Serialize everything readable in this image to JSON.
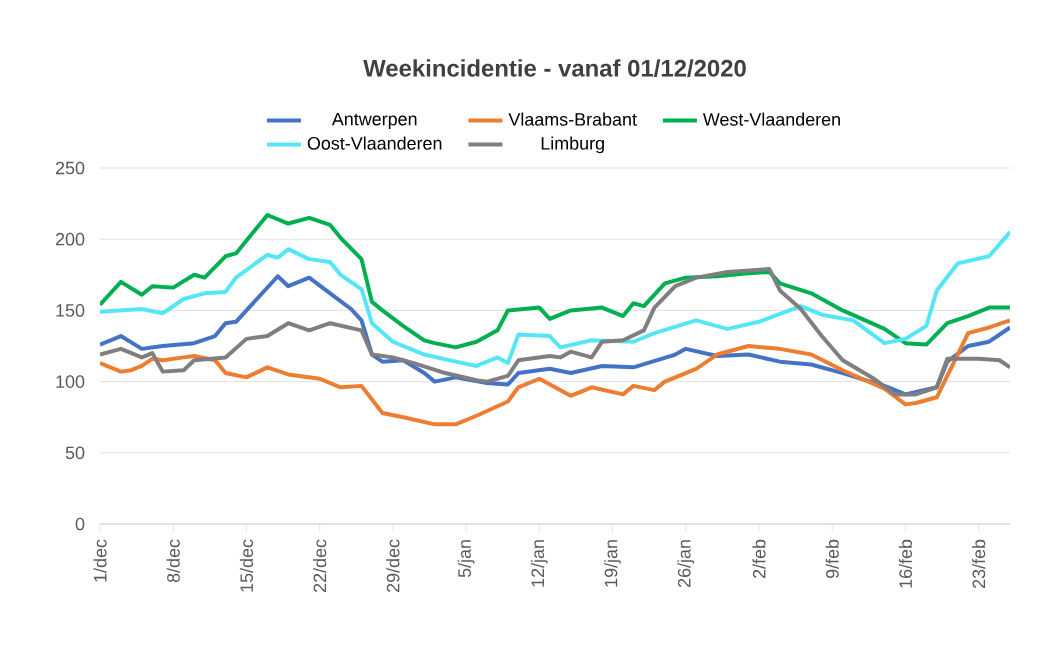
{
  "chart_data": {
    "type": "line",
    "title": "Weekincidentie  - vanaf 01/12/2020",
    "xlim": [
      "2020-12-01",
      "2021-02-26"
    ],
    "xticks": [
      {
        "value": "2020-12-01",
        "label": "1/dec"
      },
      {
        "value": "2020-12-08",
        "label": "8/dec"
      },
      {
        "value": "2020-12-15",
        "label": "15/dec"
      },
      {
        "value": "2020-12-22",
        "label": "22/dec"
      },
      {
        "value": "2020-12-29",
        "label": "29/dec"
      },
      {
        "value": "2021-01-05",
        "label": "5/jan"
      },
      {
        "value": "2021-01-12",
        "label": "12/jan"
      },
      {
        "value": "2021-01-19",
        "label": "19/jan"
      },
      {
        "value": "2021-01-26",
        "label": "26/jan"
      },
      {
        "value": "2021-02-02",
        "label": "2/feb"
      },
      {
        "value": "2021-02-09",
        "label": "9/feb"
      },
      {
        "value": "2021-02-16",
        "label": "16/feb"
      },
      {
        "value": "2021-02-23",
        "label": "23/feb"
      }
    ],
    "ylim": [
      0,
      250
    ],
    "yticks": [
      0,
      50,
      100,
      150,
      200,
      250
    ],
    "grid": "y",
    "legend": "top",
    "series": [
      {
        "name": "Antwerpen",
        "color": "#4472c4",
        "x": [
          "2020-12-01",
          "2020-12-03",
          "2020-12-05",
          "2020-12-07",
          "2020-12-10",
          "2020-12-12",
          "2020-12-13",
          "2020-12-14",
          "2020-12-18",
          "2020-12-19",
          "2020-12-21",
          "2020-12-23",
          "2020-12-25",
          "2020-12-26",
          "2020-12-27",
          "2020-12-28",
          "2020-12-30",
          "2021-01-01",
          "2021-01-02",
          "2021-01-04",
          "2021-01-07",
          "2021-01-09",
          "2021-01-10",
          "2021-01-13",
          "2021-01-15",
          "2021-01-18",
          "2021-01-21",
          "2021-01-25",
          "2021-01-26",
          "2021-01-29",
          "2021-02-01",
          "2021-02-04",
          "2021-02-07",
          "2021-02-10",
          "2021-02-14",
          "2021-02-16",
          "2021-02-19",
          "2021-02-20",
          "2021-02-22",
          "2021-02-24",
          "2021-02-26"
        ],
        "values": [
          126,
          132,
          123,
          125,
          127,
          132,
          141,
          142,
          174,
          167,
          173,
          162,
          151,
          143,
          119,
          114,
          115,
          106,
          100,
          103,
          99,
          98,
          106,
          109,
          106,
          111,
          110,
          119,
          123,
          118,
          119,
          114,
          112,
          106,
          97,
          91,
          96,
          114,
          125,
          128,
          138
        ]
      },
      {
        "name": "Vlaams-Brabant",
        "color": "#ed7d31",
        "x": [
          "2020-12-01",
          "2020-12-03",
          "2020-12-04",
          "2020-12-05",
          "2020-12-06",
          "2020-12-07",
          "2020-12-09",
          "2020-12-10",
          "2020-12-12",
          "2020-12-13",
          "2020-12-15",
          "2020-12-17",
          "2020-12-19",
          "2020-12-22",
          "2020-12-24",
          "2020-12-26",
          "2020-12-28",
          "2020-12-30",
          "2021-01-02",
          "2021-01-04",
          "2021-01-06",
          "2021-01-09",
          "2021-01-10",
          "2021-01-12",
          "2021-01-15",
          "2021-01-17",
          "2021-01-20",
          "2021-01-21",
          "2021-01-23",
          "2021-01-24",
          "2021-01-27",
          "2021-01-29",
          "2021-02-01",
          "2021-02-04",
          "2021-02-07",
          "2021-02-10",
          "2021-02-14",
          "2021-02-16",
          "2021-02-17",
          "2021-02-19",
          "2021-02-21",
          "2021-02-22",
          "2021-02-24",
          "2021-02-26"
        ],
        "values": [
          113,
          107,
          108,
          111,
          116,
          115,
          117,
          118,
          115,
          106,
          103,
          110,
          105,
          102,
          96,
          97,
          78,
          75,
          70,
          70,
          76,
          86,
          96,
          102,
          90,
          96,
          91,
          97,
          94,
          100,
          109,
          119,
          125,
          123,
          119,
          108,
          95,
          84,
          85,
          89,
          119,
          134,
          138,
          143
        ]
      },
      {
        "name": "West-Vlaanderen",
        "color": "#00b050",
        "x": [
          "2020-12-01",
          "2020-12-03",
          "2020-12-05",
          "2020-12-06",
          "2020-12-08",
          "2020-12-10",
          "2020-12-11",
          "2020-12-13",
          "2020-12-14",
          "2020-12-17",
          "2020-12-19",
          "2020-12-21",
          "2020-12-23",
          "2020-12-24",
          "2020-12-26",
          "2020-12-27",
          "2020-12-28",
          "2020-12-30",
          "2021-01-01",
          "2021-01-02",
          "2021-01-04",
          "2021-01-06",
          "2021-01-08",
          "2021-01-09",
          "2021-01-12",
          "2021-01-13",
          "2021-01-15",
          "2021-01-18",
          "2021-01-20",
          "2021-01-21",
          "2021-01-22",
          "2021-01-24",
          "2021-01-26",
          "2021-01-29",
          "2021-02-01",
          "2021-02-03",
          "2021-02-04",
          "2021-02-07",
          "2021-02-10",
          "2021-02-14",
          "2021-02-16",
          "2021-02-18",
          "2021-02-20",
          "2021-02-22",
          "2021-02-24",
          "2021-02-26"
        ],
        "values": [
          154,
          170,
          161,
          167,
          166,
          175,
          173,
          188,
          190,
          217,
          211,
          215,
          210,
          201,
          186,
          156,
          150,
          139,
          129,
          127,
          124,
          128,
          136,
          150,
          152,
          144,
          150,
          152,
          146,
          155,
          153,
          169,
          173,
          174,
          176,
          177,
          169,
          162,
          150,
          137,
          127,
          126,
          141,
          146,
          152,
          152
        ]
      },
      {
        "name": "Oost-Vlaanderen",
        "color": "#55e6f5",
        "x": [
          "2020-12-01",
          "2020-12-05",
          "2020-12-07",
          "2020-12-09",
          "2020-12-11",
          "2020-12-13",
          "2020-12-14",
          "2020-12-17",
          "2020-12-18",
          "2020-12-19",
          "2020-12-21",
          "2020-12-23",
          "2020-12-24",
          "2020-12-26",
          "2020-12-27",
          "2020-12-29",
          "2021-01-01",
          "2021-01-04",
          "2021-01-06",
          "2021-01-08",
          "2021-01-09",
          "2021-01-10",
          "2021-01-13",
          "2021-01-14",
          "2021-01-17",
          "2021-01-21",
          "2021-01-23",
          "2021-01-27",
          "2021-01-29",
          "2021-01-30",
          "2021-02-02",
          "2021-02-06",
          "2021-02-08",
          "2021-02-11",
          "2021-02-14",
          "2021-02-16",
          "2021-02-18",
          "2021-02-19",
          "2021-02-21",
          "2021-02-24",
          "2021-02-26"
        ],
        "values": [
          149,
          151,
          148,
          158,
          162,
          163,
          173,
          189,
          187,
          193,
          186,
          184,
          175,
          165,
          141,
          128,
          119,
          114,
          111,
          117,
          113,
          133,
          132,
          124,
          129,
          128,
          134,
          143,
          139,
          137,
          142,
          153,
          147,
          143,
          127,
          130,
          139,
          164,
          183,
          188,
          205
        ]
      },
      {
        "name": "Limburg",
        "color": "#7f7f7f",
        "x": [
          "2020-12-01",
          "2020-12-03",
          "2020-12-05",
          "2020-12-06",
          "2020-12-07",
          "2020-12-09",
          "2020-12-10",
          "2020-12-13",
          "2020-12-15",
          "2020-12-17",
          "2020-12-19",
          "2020-12-21",
          "2020-12-23",
          "2020-12-26",
          "2020-12-27",
          "2020-12-29",
          "2020-12-31",
          "2021-01-03",
          "2021-01-06",
          "2021-01-07",
          "2021-01-09",
          "2021-01-10",
          "2021-01-13",
          "2021-01-14",
          "2021-01-15",
          "2021-01-17",
          "2021-01-18",
          "2021-01-20",
          "2021-01-22",
          "2021-01-23",
          "2021-01-25",
          "2021-01-27",
          "2021-01-30",
          "2021-02-03",
          "2021-02-04",
          "2021-02-06",
          "2021-02-08",
          "2021-02-10",
          "2021-02-13",
          "2021-02-15",
          "2021-02-17",
          "2021-02-19",
          "2021-02-20",
          "2021-02-23",
          "2021-02-25",
          "2021-02-26"
        ],
        "values": [
          119,
          123,
          117,
          120,
          107,
          108,
          115,
          117,
          130,
          132,
          141,
          136,
          141,
          136,
          119,
          117,
          113,
          106,
          101,
          100,
          104,
          115,
          118,
          117,
          121,
          117,
          128,
          129,
          136,
          152,
          167,
          173,
          177,
          179,
          164,
          151,
          132,
          115,
          102,
          91,
          91,
          96,
          116,
          116,
          115,
          110
        ]
      }
    ]
  }
}
